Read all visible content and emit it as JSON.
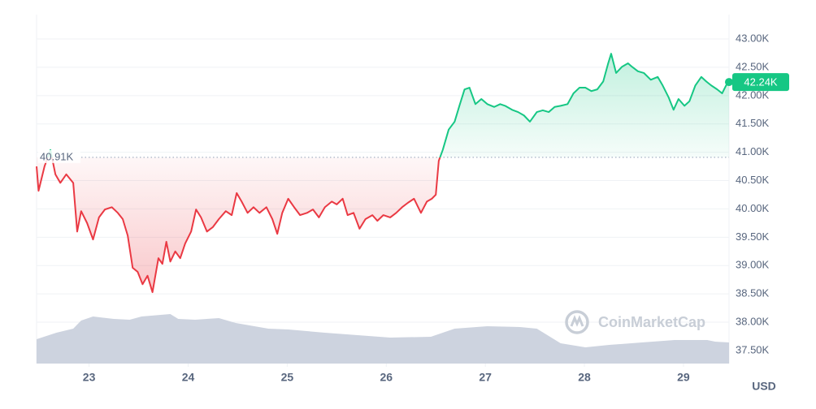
{
  "chart_data": {
    "type": "line",
    "x": [
      22.47,
      22.49,
      22.55,
      22.61,
      22.66,
      22.71,
      22.77,
      22.84,
      22.88,
      22.92,
      22.98,
      23.04,
      23.1,
      23.16,
      23.23,
      23.29,
      23.34,
      23.39,
      23.44,
      23.49,
      23.54,
      23.59,
      23.64,
      23.7,
      23.74,
      23.78,
      23.82,
      23.87,
      23.92,
      23.97,
      24.03,
      24.08,
      24.13,
      24.19,
      24.25,
      24.31,
      24.38,
      24.44,
      24.49,
      24.54,
      24.6,
      24.66,
      24.72,
      24.79,
      24.85,
      24.9,
      24.95,
      25.01,
      25.07,
      25.13,
      25.2,
      25.26,
      25.32,
      25.38,
      25.45,
      25.5,
      25.56,
      25.61,
      25.67,
      25.73,
      25.79,
      25.86,
      25.91,
      25.97,
      26.04,
      26.1,
      26.16,
      26.22,
      26.28,
      26.35,
      26.41,
      26.46,
      26.5,
      26.53,
      26.57,
      26.63,
      26.69,
      26.74,
      26.79,
      26.84,
      26.9,
      26.96,
      27.02,
      27.09,
      27.15,
      27.2,
      27.27,
      27.33,
      27.39,
      27.45,
      27.52,
      27.58,
      27.64,
      27.7,
      27.76,
      27.83,
      27.89,
      27.95,
      28.01,
      28.07,
      28.13,
      28.19,
      28.24,
      28.27,
      28.32,
      28.38,
      28.44,
      28.48,
      28.54,
      28.6,
      28.67,
      28.74,
      28.79,
      28.85,
      28.9,
      28.95,
      29.01,
      29.06,
      29.12,
      29.18,
      29.23,
      29.28,
      29.34,
      29.39,
      29.43,
      29.46
    ],
    "values": [
      40750,
      40320,
      40750,
      41040,
      40610,
      40460,
      40610,
      40460,
      39600,
      39960,
      39750,
      39460,
      39850,
      39990,
      40030,
      39930,
      39820,
      39530,
      38960,
      38890,
      38670,
      38820,
      38530,
      39130,
      39030,
      39420,
      39070,
      39250,
      39130,
      39390,
      39600,
      39990,
      39850,
      39600,
      39680,
      39820,
      39960,
      39890,
      40280,
      40130,
      39930,
      40030,
      39930,
      40030,
      39820,
      39560,
      39930,
      40180,
      40030,
      39890,
      39930,
      39990,
      39850,
      40030,
      40130,
      40080,
      40180,
      39890,
      39930,
      39650,
      39820,
      39890,
      39790,
      39890,
      39850,
      39930,
      40030,
      40110,
      40180,
      39930,
      40130,
      40180,
      40250,
      40850,
      41040,
      41400,
      41540,
      41830,
      42110,
      42140,
      41850,
      41940,
      41850,
      41800,
      41850,
      41820,
      41750,
      41710,
      41650,
      41540,
      41710,
      41740,
      41710,
      41800,
      41820,
      41850,
      42040,
      42140,
      42140,
      42080,
      42110,
      42250,
      42570,
      42740,
      42400,
      42510,
      42570,
      42510,
      42430,
      42400,
      42280,
      42330,
      42180,
      41970,
      41750,
      41940,
      41820,
      41900,
      42180,
      42330,
      42250,
      42180,
      42110,
      42040,
      42180,
      42240
    ],
    "up_color": "#16c784",
    "down_color": "#ea3943",
    "baseline": {
      "value": 40910,
      "label": "40.91K"
    },
    "current_price": {
      "value": 42240,
      "label": "42.24K"
    },
    "volume": {
      "color": "#cdd3df",
      "x": [
        22.47,
        22.67,
        22.84,
        22.92,
        23.04,
        23.25,
        23.41,
        23.53,
        23.82,
        23.9,
        24.07,
        24.31,
        24.48,
        24.81,
        25.01,
        25.38,
        25.71,
        26.04,
        26.45,
        26.69,
        27.02,
        27.35,
        27.52,
        27.76,
        28.01,
        28.25,
        28.58,
        28.91,
        29.24,
        29.32,
        29.46
      ],
      "values": [
        30,
        38,
        43,
        53,
        58,
        55,
        54,
        58,
        61,
        55,
        54,
        56,
        50,
        43,
        42,
        38,
        35,
        32,
        33,
        43,
        46,
        45,
        43,
        25,
        20,
        23,
        26,
        29,
        29,
        27,
        26
      ],
      "lim": [
        0,
        62
      ]
    },
    "xlim": [
      22.47,
      29.46
    ],
    "xticks": [
      23,
      24,
      25,
      26,
      27,
      28,
      29
    ],
    "ylim": [
      37270,
      43430
    ],
    "yticks": [
      {
        "value": 37500,
        "label": "37.50K"
      },
      {
        "value": 38000,
        "label": "38.00K"
      },
      {
        "value": 38500,
        "label": "38.50K"
      },
      {
        "value": 39000,
        "label": "39.00K"
      },
      {
        "value": 39500,
        "label": "39.50K"
      },
      {
        "value": 40000,
        "label": "40.00K"
      },
      {
        "value": 40500,
        "label": "40.50K"
      },
      {
        "value": 41000,
        "label": "41.00K"
      },
      {
        "value": 41500,
        "label": "41.50K"
      },
      {
        "value": 42000,
        "label": "42.00K"
      },
      {
        "value": 42500,
        "label": "42.50K"
      },
      {
        "value": 43000,
        "label": "43.00K"
      }
    ],
    "grid": true,
    "currency_label": "USD",
    "watermark": "CoinMarketCap"
  }
}
